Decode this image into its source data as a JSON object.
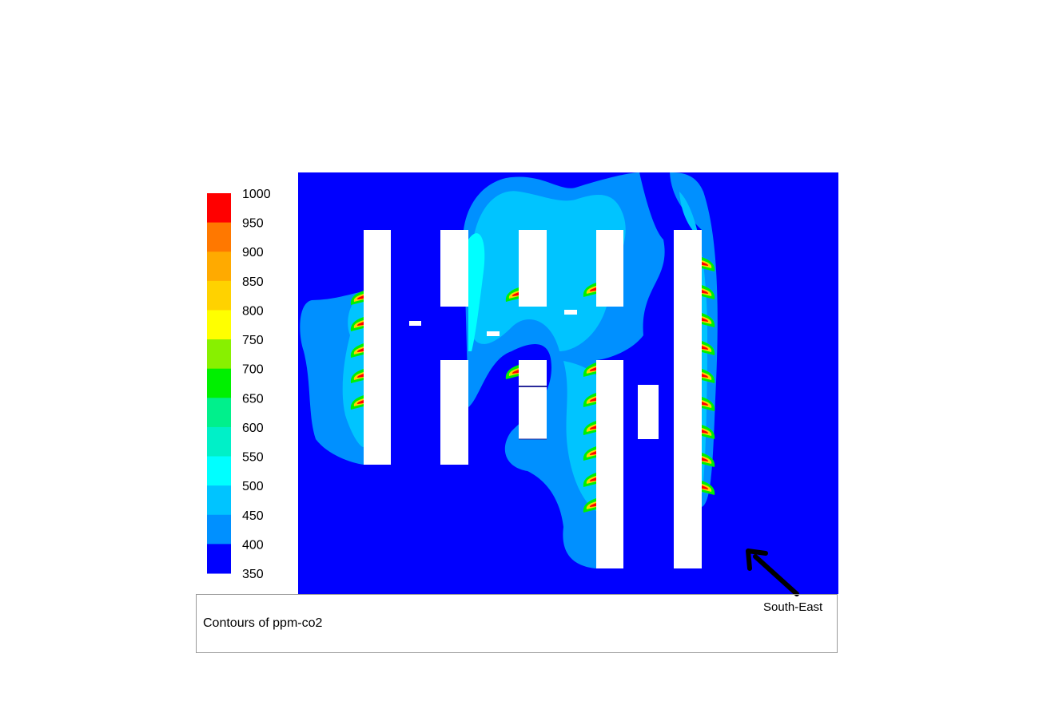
{
  "chart_data": {
    "type": "heatmap",
    "title": "Contours of ppm-co2",
    "variable": "ppm-co2",
    "colorbar": {
      "ticks": [
        1000,
        950,
        900,
        850,
        800,
        750,
        700,
        650,
        600,
        550,
        500,
        450,
        400,
        350
      ],
      "range": [
        350,
        1000
      ],
      "placement": "left",
      "band_colors": [
        "#ff0000",
        "#ff7800",
        "#ffaa00",
        "#ffd200",
        "#ffff00",
        "#88f000",
        "#00f000",
        "#00f08c",
        "#00f0c8",
        "#00ffff",
        "#00c4ff",
        "#0090ff",
        "#0000ff"
      ]
    },
    "background_color": "#0000ff",
    "wind_direction_label": "South-East"
  }
}
